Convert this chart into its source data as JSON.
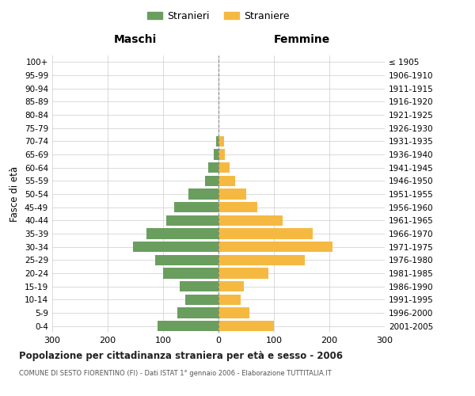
{
  "age_groups": [
    "0-4",
    "5-9",
    "10-14",
    "15-19",
    "20-24",
    "25-29",
    "30-34",
    "35-39",
    "40-44",
    "45-49",
    "50-54",
    "55-59",
    "60-64",
    "65-69",
    "70-74",
    "75-79",
    "80-84",
    "85-89",
    "90-94",
    "95-99",
    "100+"
  ],
  "birth_years": [
    "2001-2005",
    "1996-2000",
    "1991-1995",
    "1986-1990",
    "1981-1985",
    "1976-1980",
    "1971-1975",
    "1966-1970",
    "1961-1965",
    "1956-1960",
    "1951-1955",
    "1946-1950",
    "1941-1945",
    "1936-1940",
    "1931-1935",
    "1926-1930",
    "1921-1925",
    "1916-1920",
    "1911-1915",
    "1906-1910",
    "≤ 1905"
  ],
  "males": [
    110,
    75,
    60,
    70,
    100,
    115,
    155,
    130,
    95,
    80,
    55,
    25,
    18,
    8,
    5,
    0,
    0,
    0,
    0,
    0,
    0
  ],
  "females": [
    100,
    55,
    40,
    45,
    90,
    155,
    205,
    170,
    115,
    70,
    50,
    30,
    20,
    12,
    10,
    0,
    0,
    0,
    0,
    0,
    0
  ],
  "male_color": "#6a9e5f",
  "female_color": "#f5b942",
  "center_line_color": "#888888",
  "grid_color": "#cccccc",
  "bg_color": "#ffffff",
  "title": "Popolazione per cittadinanza straniera per età e sesso - 2006",
  "subtitle": "COMUNE DI SESTO FIORENTINO (FI) - Dati ISTAT 1° gennaio 2006 - Elaborazione TUTTITALIA.IT",
  "xlabel_left": "Maschi",
  "xlabel_right": "Femmine",
  "ylabel_left": "Fasce di età",
  "legend_stranieri": "Stranieri",
  "legend_straniere": "Straniere",
  "xlim": 300
}
